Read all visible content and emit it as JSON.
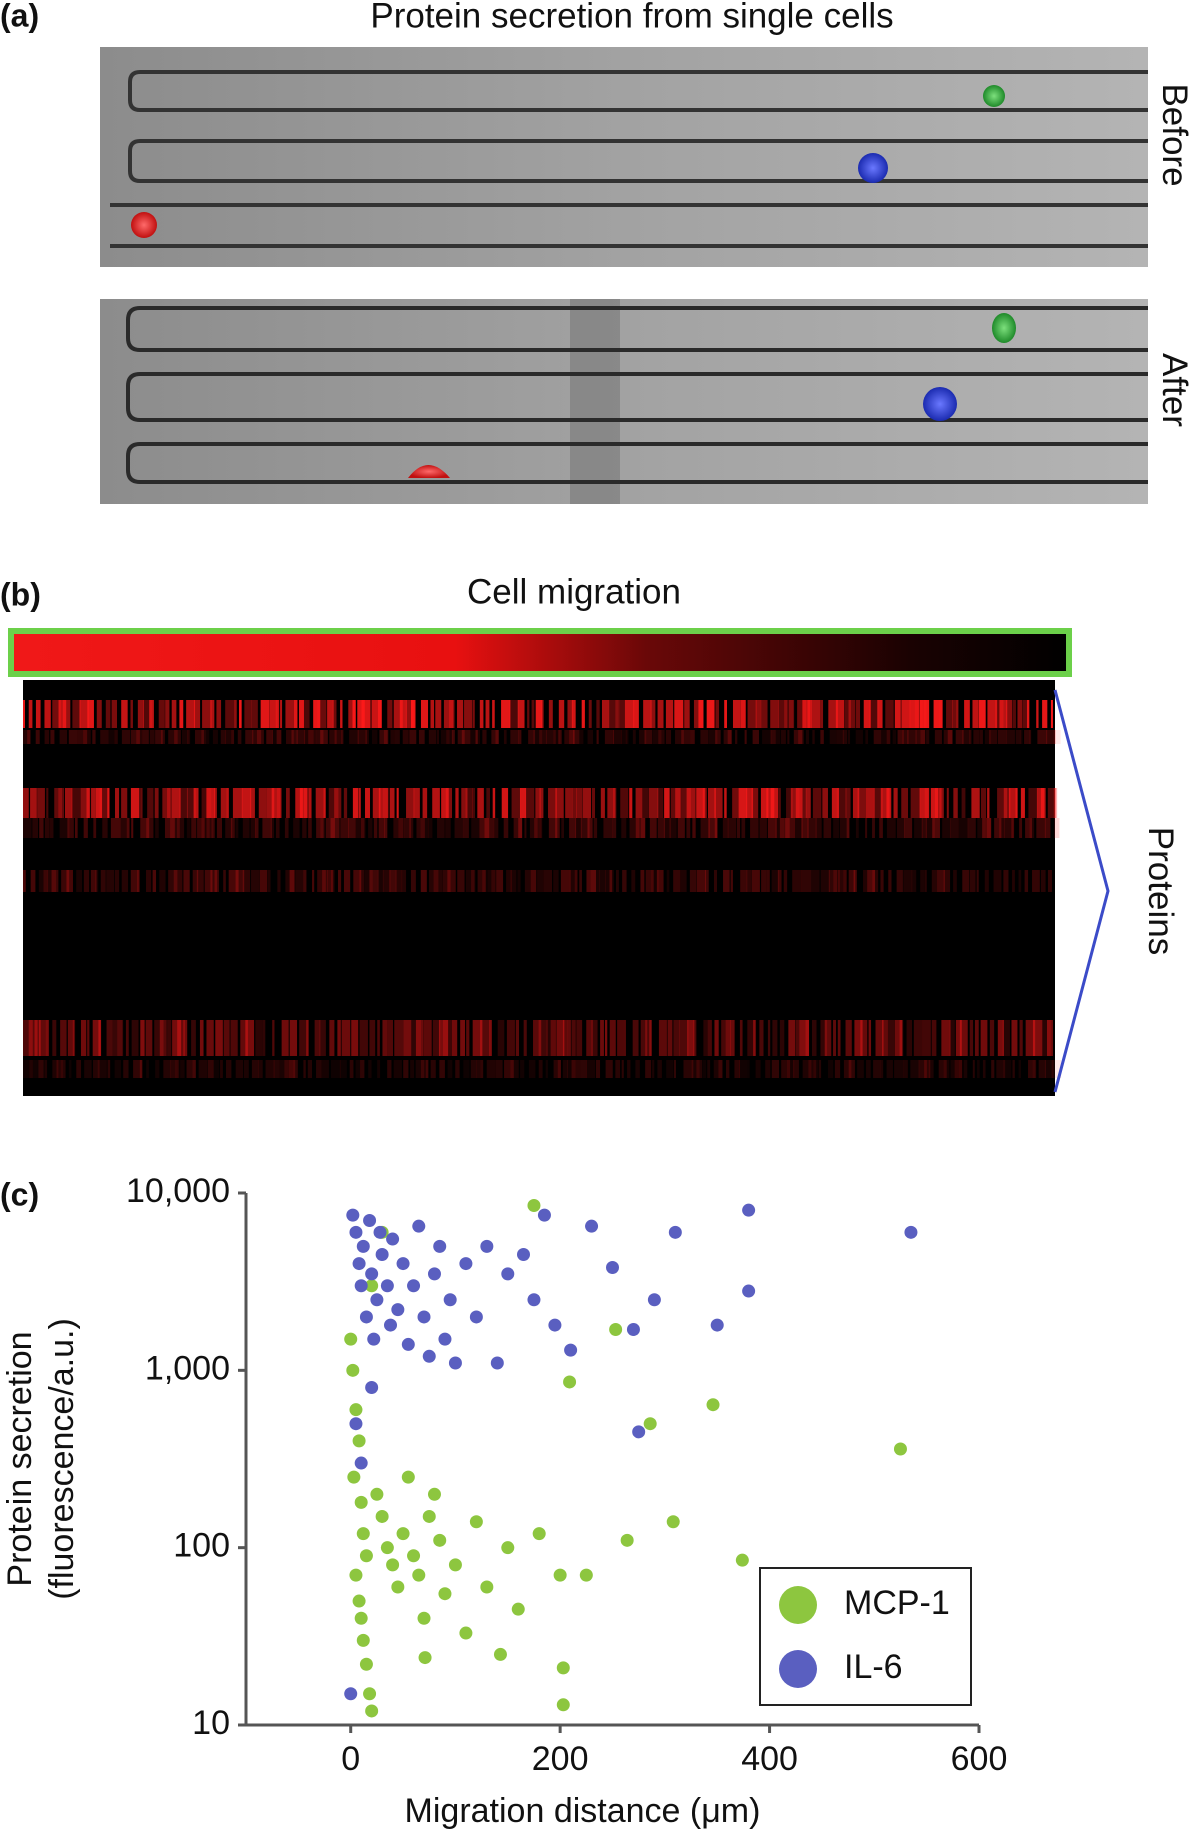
{
  "panel_a": {
    "label": "(a)",
    "title": "Protein secretion from single cells",
    "before": "Before",
    "after": "After"
  },
  "panel_b": {
    "label": "(b)",
    "title": "Cell migration",
    "proteins": "Proteins"
  },
  "chart_data": {
    "type": "scatter",
    "panel_label": "(c)",
    "xlabel": "Migration distance (μm)",
    "ylabel": [
      "Protein secretion",
      "(fluorescence/a.u.)"
    ],
    "xlim": [
      -100,
      600
    ],
    "xticks": [
      0,
      200,
      400,
      600
    ],
    "ylim": [
      10,
      10000
    ],
    "yscale": "log",
    "yticks": [
      10,
      100,
      {
        "value": 1000,
        "label": "1,000"
      },
      {
        "value": 10000,
        "label": "10,000"
      }
    ],
    "legend": "lower right",
    "series": [
      {
        "name": "MCP-1",
        "color": "#8dc63f",
        "x": [
          0,
          2,
          5,
          8,
          3,
          10,
          12,
          15,
          5,
          8,
          10,
          12,
          15,
          18,
          20,
          25,
          30,
          35,
          40,
          45,
          50,
          55,
          60,
          65,
          70,
          75,
          80,
          85,
          90,
          100,
          110,
          120,
          130,
          143,
          150,
          160,
          175,
          180,
          200,
          203,
          203,
          209,
          225,
          253,
          264,
          286,
          308,
          346,
          374,
          525,
          71,
          30,
          20
        ],
        "values": [
          1500,
          1000,
          600,
          400,
          250,
          180,
          120,
          90,
          70,
          50,
          40,
          30,
          22,
          15,
          12,
          200,
          150,
          100,
          80,
          60,
          120,
          250,
          90,
          70,
          40,
          150,
          200,
          110,
          55,
          80,
          33,
          140,
          60,
          25,
          100,
          45,
          8500,
          120,
          70,
          21,
          13,
          860,
          70,
          1700,
          110,
          500,
          140,
          640,
          85,
          360,
          24,
          6000,
          3000
        ]
      },
      {
        "name": "IL-6",
        "color": "#5a5fc0",
        "x": [
          2,
          5,
          8,
          10,
          12,
          15,
          18,
          20,
          22,
          25,
          28,
          30,
          35,
          38,
          40,
          45,
          50,
          55,
          60,
          65,
          70,
          75,
          80,
          85,
          90,
          95,
          100,
          110,
          120,
          130,
          140,
          150,
          165,
          175,
          185,
          195,
          210,
          230,
          250,
          270,
          290,
          310,
          350,
          380,
          380,
          535,
          275,
          5,
          10,
          20,
          0
        ],
        "values": [
          7500,
          6000,
          4000,
          3000,
          5000,
          2000,
          7000,
          3500,
          1500,
          2500,
          6000,
          4500,
          3000,
          1800,
          5500,
          2200,
          4000,
          1400,
          3000,
          6500,
          2000,
          1200,
          3500,
          5000,
          1500,
          2500,
          1100,
          4000,
          2000,
          5000,
          1100,
          3500,
          4500,
          2500,
          7500,
          1800,
          1300,
          6500,
          3800,
          1700,
          2500,
          6000,
          1800,
          8000,
          2800,
          6000,
          450,
          500,
          300,
          800,
          15
        ]
      }
    ]
  }
}
